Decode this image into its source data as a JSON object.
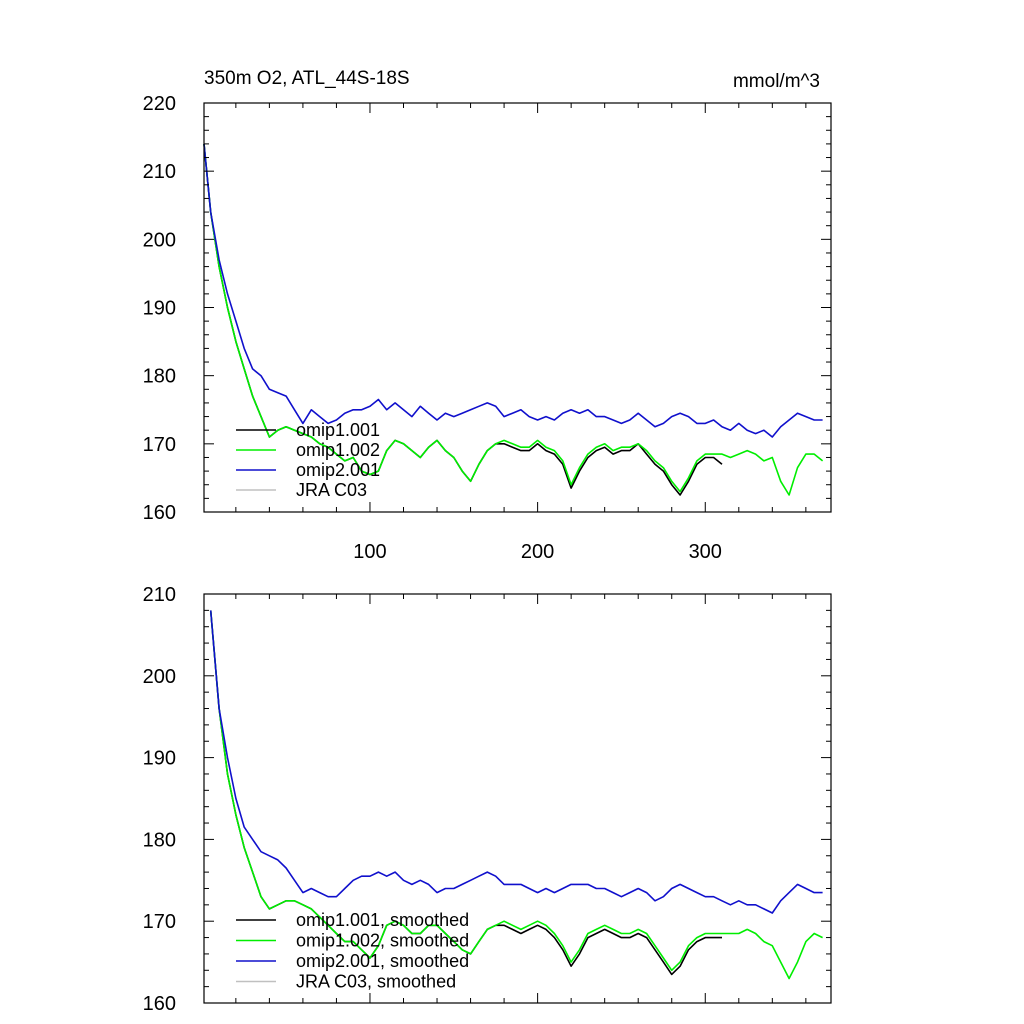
{
  "chart_data": [
    {
      "type": "line",
      "title_left": "350m O2, ATL_44S-18S",
      "title_right": "mmol/m^3",
      "xlabel": "",
      "ylabel": "",
      "xlim": [
        1,
        375
      ],
      "ylim": [
        160,
        220
      ],
      "yticks": [
        160,
        170,
        180,
        190,
        200,
        210,
        220
      ],
      "xticks": [
        100,
        200,
        300
      ],
      "xtick_labels": [
        "100",
        "200",
        "300"
      ],
      "grid": false,
      "legend_placement": "bottom-left",
      "series": [
        {
          "name": "omip1.001",
          "color": "#000000",
          "x": [
            1,
            5,
            10,
            15,
            20,
            25,
            30,
            35,
            40,
            45,
            50,
            55,
            60,
            65,
            70,
            75,
            80,
            85,
            90,
            95,
            100,
            105,
            110,
            115,
            120,
            125,
            130,
            135,
            140,
            145,
            150,
            155,
            160,
            165,
            170,
            175,
            180,
            185,
            190,
            195,
            200,
            205,
            210,
            215,
            220,
            225,
            230,
            235,
            240,
            245,
            250,
            255,
            260,
            265,
            270,
            275,
            280,
            285,
            290,
            295,
            300,
            305,
            310
          ],
          "y": [
            214,
            204,
            196,
            190,
            185,
            181,
            177,
            174,
            171,
            172,
            172.5,
            172,
            171.5,
            171,
            170,
            169.5,
            168.5,
            167.5,
            168,
            166,
            165.5,
            166,
            169,
            170.5,
            170,
            169,
            168,
            169.5,
            170.5,
            169,
            168,
            166,
            164.5,
            167,
            169,
            170,
            170,
            169.5,
            169,
            169,
            170,
            169,
            168.5,
            167,
            163.5,
            166,
            168,
            169,
            169.5,
            168.5,
            169,
            169,
            170,
            168.5,
            167,
            166,
            164,
            162.5,
            164.5,
            167,
            168,
            168,
            167
          ]
        },
        {
          "name": "omip1.002",
          "color": "#00ee00",
          "x": [
            1,
            5,
            10,
            15,
            20,
            25,
            30,
            35,
            40,
            45,
            50,
            55,
            60,
            65,
            70,
            75,
            80,
            85,
            90,
            95,
            100,
            105,
            110,
            115,
            120,
            125,
            130,
            135,
            140,
            145,
            150,
            155,
            160,
            165,
            170,
            175,
            180,
            185,
            190,
            195,
            200,
            205,
            210,
            215,
            220,
            225,
            230,
            235,
            240,
            245,
            250,
            255,
            260,
            265,
            270,
            275,
            280,
            285,
            290,
            295,
            300,
            305,
            310,
            315,
            320,
            325,
            330,
            335,
            340,
            345,
            350,
            355,
            360,
            365,
            370
          ],
          "y": [
            214,
            204,
            196,
            190,
            185,
            181,
            177,
            174,
            171,
            172,
            172.5,
            172,
            171.5,
            171,
            170,
            169.5,
            168.5,
            167.5,
            168,
            166,
            165.5,
            166,
            169,
            170.5,
            170,
            169,
            168,
            169.5,
            170.5,
            169,
            168,
            166,
            164.5,
            167,
            169,
            170,
            170.5,
            170,
            169.5,
            169.5,
            170.5,
            169.5,
            169,
            167.5,
            164,
            166.5,
            168.5,
            169.5,
            170,
            169,
            169.5,
            169.5,
            170,
            169,
            167.5,
            166.5,
            164.5,
            163,
            165,
            167.5,
            168.5,
            168.5,
            168.5,
            168,
            168.5,
            169,
            168.5,
            167.5,
            168,
            164.5,
            162.5,
            166.5,
            168.5,
            168.5,
            167.5
          ]
        },
        {
          "name": "omip2.001",
          "color": "#1010cc",
          "x": [
            1,
            5,
            10,
            15,
            20,
            25,
            30,
            35,
            40,
            45,
            50,
            55,
            60,
            65,
            70,
            75,
            80,
            85,
            90,
            95,
            100,
            105,
            110,
            115,
            120,
            125,
            130,
            135,
            140,
            145,
            150,
            155,
            160,
            165,
            170,
            175,
            180,
            185,
            190,
            195,
            200,
            205,
            210,
            215,
            220,
            225,
            230,
            235,
            240,
            245,
            250,
            255,
            260,
            265,
            270,
            275,
            280,
            285,
            290,
            295,
            300,
            305,
            310,
            315,
            320,
            325,
            330,
            335,
            340,
            345,
            350,
            355,
            360,
            365,
            370
          ],
          "y": [
            214,
            204,
            197,
            192,
            188,
            184,
            181,
            180,
            178,
            177.5,
            177,
            175,
            173,
            175,
            174,
            173,
            173.5,
            174.5,
            175,
            175,
            175.5,
            176.5,
            175,
            176,
            175,
            174,
            175.5,
            174.5,
            173.5,
            174.5,
            174,
            174.5,
            175,
            175.5,
            176,
            175.5,
            174,
            174.5,
            175,
            174,
            173.5,
            174,
            173.5,
            174.5,
            175,
            174.5,
            175,
            174,
            174,
            173.5,
            173,
            173.5,
            174.5,
            173.5,
            172.5,
            173,
            174,
            174.5,
            174,
            173,
            173,
            173.5,
            172.5,
            172,
            173,
            172,
            171.5,
            172,
            171,
            172.5,
            173.5,
            174.5,
            174,
            173.5,
            173.5
          ]
        },
        {
          "name": "JRA C03",
          "color": "#c0c0c0",
          "x": [],
          "y": []
        }
      ]
    },
    {
      "type": "line",
      "xlabel": "",
      "ylabel": "",
      "xlim": [
        1,
        375
      ],
      "ylim": [
        160,
        210
      ],
      "yticks": [
        160,
        170,
        180,
        190,
        200,
        210
      ],
      "xticks": [
        100,
        200,
        300
      ],
      "xtick_labels": [],
      "grid": false,
      "legend_placement": "bottom-left",
      "series": [
        {
          "name": "omip1.001, smoothed",
          "color": "#000000",
          "x": [
            5,
            10,
            15,
            20,
            25,
            30,
            35,
            40,
            45,
            50,
            55,
            60,
            65,
            70,
            75,
            80,
            85,
            90,
            95,
            100,
            105,
            110,
            115,
            120,
            125,
            130,
            135,
            140,
            145,
            150,
            155,
            160,
            165,
            170,
            175,
            180,
            185,
            190,
            195,
            200,
            205,
            210,
            215,
            220,
            225,
            230,
            235,
            240,
            245,
            250,
            255,
            260,
            265,
            270,
            275,
            280,
            285,
            290,
            295,
            300,
            305,
            310
          ],
          "y": [
            208,
            196,
            188,
            183,
            179,
            176,
            173,
            171.5,
            172,
            172.5,
            172.5,
            172,
            171.5,
            170.5,
            169.5,
            168.5,
            167.5,
            167.5,
            166.5,
            165.5,
            167,
            169.5,
            170,
            169.5,
            168.5,
            168.5,
            169.5,
            169.5,
            168.5,
            167.5,
            166.5,
            166,
            167.5,
            169,
            169.5,
            169.5,
            169,
            168.5,
            169,
            169.5,
            169,
            168,
            166.5,
            164.5,
            166,
            168,
            168.5,
            169,
            168.5,
            168,
            168,
            168.5,
            168,
            166.5,
            165,
            163.5,
            164.5,
            166.5,
            167.5,
            168,
            168,
            168
          ]
        },
        {
          "name": "omip1.002, smoothed",
          "color": "#00ee00",
          "x": [
            5,
            10,
            15,
            20,
            25,
            30,
            35,
            40,
            45,
            50,
            55,
            60,
            65,
            70,
            75,
            80,
            85,
            90,
            95,
            100,
            105,
            110,
            115,
            120,
            125,
            130,
            135,
            140,
            145,
            150,
            155,
            160,
            165,
            170,
            175,
            180,
            185,
            190,
            195,
            200,
            205,
            210,
            215,
            220,
            225,
            230,
            235,
            240,
            245,
            250,
            255,
            260,
            265,
            270,
            275,
            280,
            285,
            290,
            295,
            300,
            305,
            310,
            315,
            320,
            325,
            330,
            335,
            340,
            345,
            350,
            355,
            360,
            365,
            370
          ],
          "y": [
            208,
            196,
            188,
            183,
            179,
            176,
            173,
            171.5,
            172,
            172.5,
            172.5,
            172,
            171.5,
            170.5,
            169.5,
            168.5,
            167.5,
            167.5,
            166.5,
            165.5,
            167,
            169.5,
            170,
            169.5,
            168.5,
            168.5,
            169.5,
            169.5,
            168.5,
            167.5,
            166.5,
            166,
            167.5,
            169,
            169.5,
            170,
            169.5,
            169,
            169.5,
            170,
            169.5,
            168.5,
            167,
            165,
            166.5,
            168.5,
            169,
            169.5,
            169,
            168.5,
            168.5,
            169,
            168.5,
            167,
            165.5,
            164,
            165,
            167,
            168,
            168.5,
            168.5,
            168.5,
            168.5,
            168.5,
            169,
            168.5,
            167.5,
            167,
            165,
            163,
            165,
            167.5,
            168.5,
            168
          ]
        },
        {
          "name": "omip2.001, smoothed",
          "color": "#1010cc",
          "x": [
            5,
            10,
            15,
            20,
            25,
            30,
            35,
            40,
            45,
            50,
            55,
            60,
            65,
            70,
            75,
            80,
            85,
            90,
            95,
            100,
            105,
            110,
            115,
            120,
            125,
            130,
            135,
            140,
            145,
            150,
            155,
            160,
            165,
            170,
            175,
            180,
            185,
            190,
            195,
            200,
            205,
            210,
            215,
            220,
            225,
            230,
            235,
            240,
            245,
            250,
            255,
            260,
            265,
            270,
            275,
            280,
            285,
            290,
            295,
            300,
            305,
            310,
            315,
            320,
            325,
            330,
            335,
            340,
            345,
            350,
            355,
            360,
            365,
            370
          ],
          "y": [
            208,
            196,
            190,
            185,
            181.5,
            180,
            178.5,
            178,
            177.5,
            176.5,
            175,
            173.5,
            174,
            173.5,
            173,
            173,
            174,
            175,
            175.5,
            175.5,
            176,
            175.5,
            176,
            175,
            174.5,
            175,
            174.5,
            173.5,
            174,
            174,
            174.5,
            175,
            175.5,
            176,
            175.5,
            174.5,
            174.5,
            174.5,
            174,
            173.5,
            174,
            173.5,
            174,
            174.5,
            174.5,
            174.5,
            174,
            174,
            173.5,
            173,
            173.5,
            174,
            173.5,
            172.5,
            173,
            174,
            174.5,
            174,
            173.5,
            173,
            173,
            172.5,
            172,
            172.5,
            172,
            172,
            171.5,
            171,
            172.5,
            173.5,
            174.5,
            174,
            173.5,
            173.5
          ]
        },
        {
          "name": "JRA C03, smoothed",
          "color": "#c0c0c0",
          "x": [],
          "y": []
        }
      ]
    }
  ]
}
